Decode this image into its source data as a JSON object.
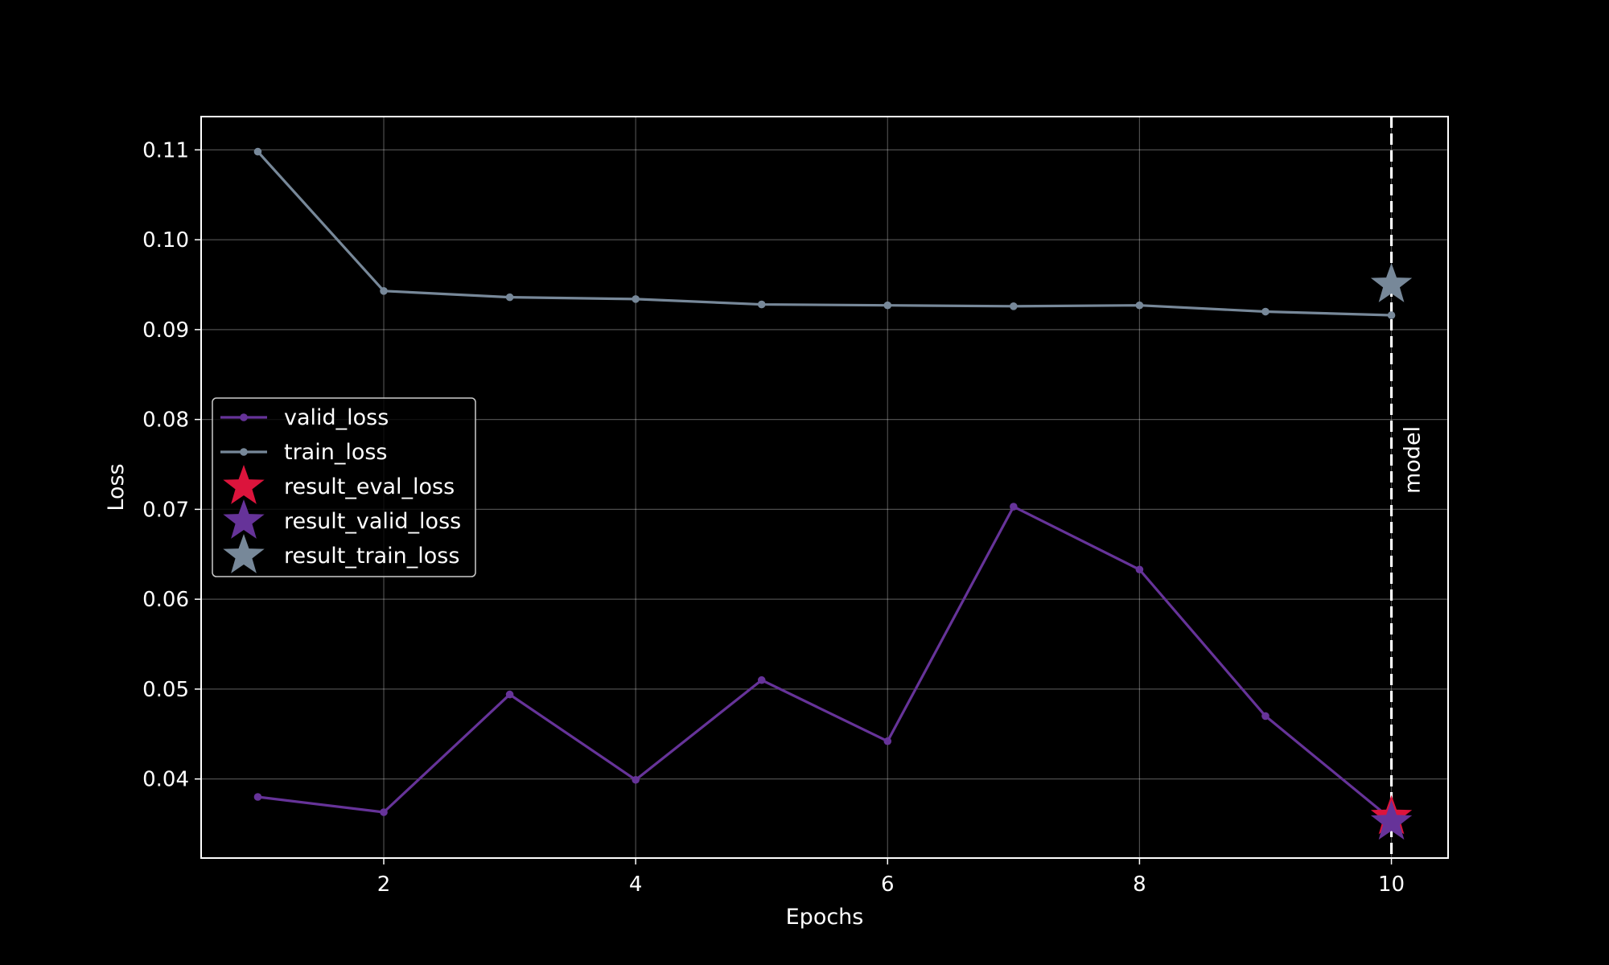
{
  "chart_data": {
    "type": "line",
    "xlabel": "Epochs",
    "ylabel": "Loss",
    "xlim": [
      0.55,
      10.45
    ],
    "ylim": [
      0.0312,
      0.1137
    ],
    "xticks": [
      2,
      4,
      6,
      8,
      10
    ],
    "yticks": [
      0.04,
      0.05,
      0.06,
      0.07,
      0.08,
      0.09,
      0.1,
      0.11
    ],
    "ytick_labels": [
      "0.04",
      "0.05",
      "0.06",
      "0.07",
      "0.08",
      "0.09",
      "0.10",
      "0.11"
    ],
    "grid": true,
    "legend_position": "center-left",
    "series": [
      {
        "name": "valid_loss",
        "color": "#663399",
        "x": [
          1,
          2,
          3,
          4,
          5,
          6,
          7,
          8,
          9,
          10
        ],
        "y": [
          0.038,
          0.0363,
          0.0494,
          0.0399,
          0.051,
          0.0442,
          0.0703,
          0.0633,
          0.047,
          0.0355
        ]
      },
      {
        "name": "train_loss",
        "color": "#778899",
        "x": [
          1,
          2,
          3,
          4,
          5,
          6,
          7,
          8,
          9,
          10
        ],
        "y": [
          0.1098,
          0.0943,
          0.0936,
          0.0934,
          0.0928,
          0.0927,
          0.0926,
          0.0927,
          0.092,
          0.0916
        ]
      }
    ],
    "result_points": [
      {
        "name": "result_eval_loss",
        "color": "#dc143c",
        "x": 10,
        "y": 0.0358
      },
      {
        "name": "result_valid_loss",
        "color": "#663399",
        "x": 10,
        "y": 0.0352
      },
      {
        "name": "result_train_loss",
        "color": "#778899",
        "x": 10,
        "y": 0.095
      }
    ],
    "vertical_line": {
      "x": 10,
      "label": "model",
      "color": "#ffffff"
    }
  }
}
